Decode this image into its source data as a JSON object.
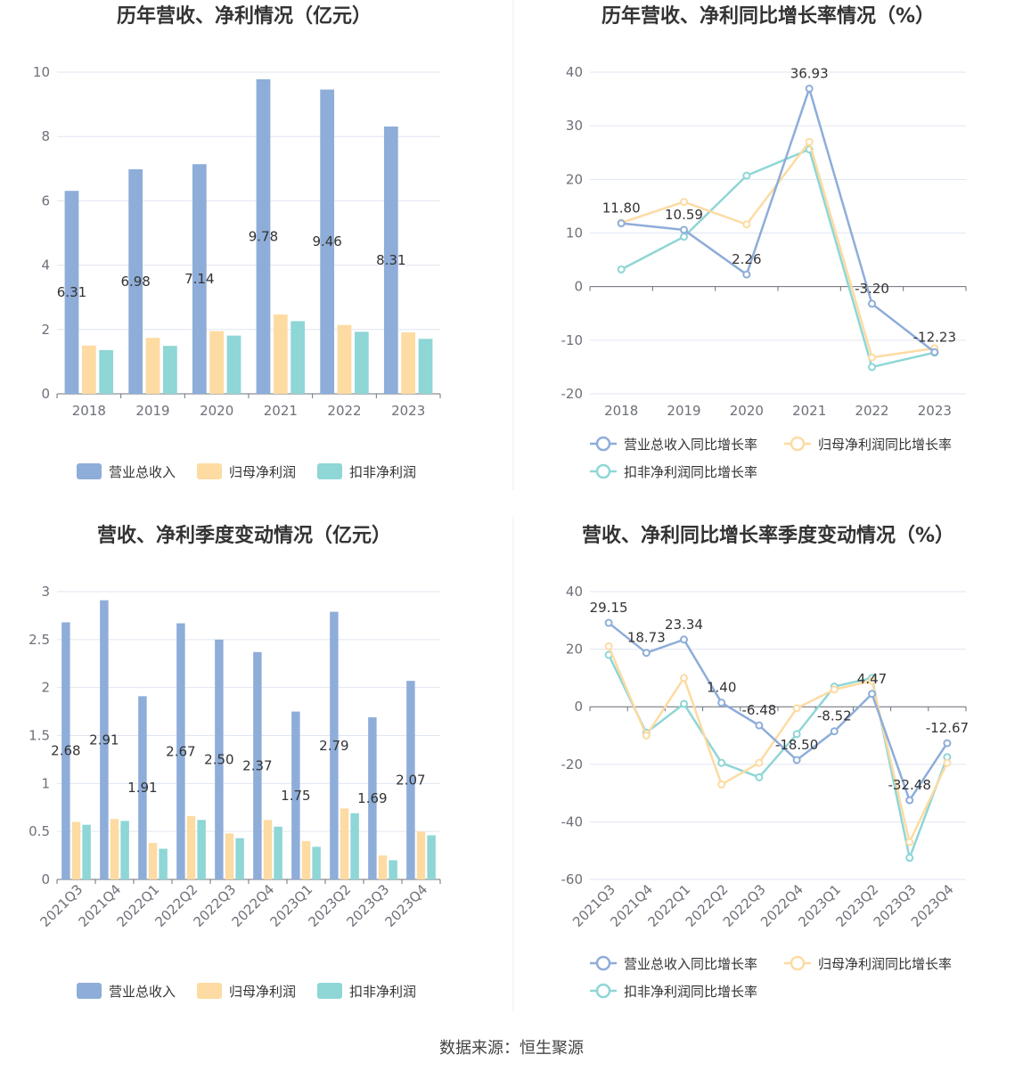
{
  "source": "数据来源：恒生聚源",
  "colors": {
    "revenue": "#8eadd9",
    "net_profit": "#fddba2",
    "deducted_profit": "#8fd6d6",
    "axis": "#6e7079",
    "grid": "#e0e6f1",
    "label": "#333333"
  },
  "chart_data": [
    {
      "id": "annual-values",
      "type": "bar",
      "title": "历年营收、净利情况（亿元）",
      "categories": [
        "2018",
        "2019",
        "2020",
        "2021",
        "2022",
        "2023"
      ],
      "ylim": [
        0,
        10
      ],
      "yticks": [
        0,
        2,
        4,
        6,
        8,
        10
      ],
      "grid": true,
      "legend_position": "bottom",
      "series": [
        {
          "name": "营业总收入",
          "values": [
            6.31,
            6.98,
            7.14,
            9.78,
            9.46,
            8.31
          ],
          "labels": [
            "6.31",
            "6.98",
            "7.14",
            "9.78",
            "9.46",
            "8.31"
          ]
        },
        {
          "name": "归母净利润",
          "values": [
            1.5,
            1.74,
            1.95,
            2.47,
            2.14,
            1.91
          ]
        },
        {
          "name": "扣非净利润",
          "values": [
            1.36,
            1.49,
            1.81,
            2.26,
            1.93,
            1.71
          ]
        }
      ]
    },
    {
      "id": "annual-growth",
      "type": "line",
      "title": "历年营收、净利同比增长率情况（%）",
      "categories": [
        "2018",
        "2019",
        "2020",
        "2021",
        "2022",
        "2023"
      ],
      "ylim": [
        -20,
        40
      ],
      "yticks": [
        -20,
        -10,
        0,
        10,
        20,
        30,
        40
      ],
      "grid": true,
      "legend_position": "bottom",
      "series": [
        {
          "name": "营业总收入同比增长率",
          "values": [
            11.8,
            10.59,
            2.26,
            36.93,
            -3.2,
            -12.23
          ],
          "labels": [
            "11.80",
            "10.59",
            "2.26",
            "36.93",
            "-3.20",
            "-12.23"
          ]
        },
        {
          "name": "归母净利润同比增长率",
          "values": [
            11.9,
            15.8,
            11.6,
            27.0,
            -13.2,
            -11.5
          ]
        },
        {
          "name": "扣非净利润同比增长率",
          "values": [
            3.2,
            9.3,
            20.7,
            25.6,
            -15.0,
            -12.3
          ]
        }
      ]
    },
    {
      "id": "quarterly-values",
      "type": "bar",
      "title": "营收、净利季度变动情况（亿元）",
      "categories": [
        "2021Q3",
        "2021Q4",
        "2022Q1",
        "2022Q2",
        "2022Q3",
        "2022Q4",
        "2023Q1",
        "2023Q2",
        "2023Q3",
        "2023Q4"
      ],
      "ylim": [
        0,
        3
      ],
      "yticks": [
        0,
        0.5,
        1,
        1.5,
        2,
        2.5,
        3
      ],
      "grid": true,
      "legend_position": "bottom",
      "series": [
        {
          "name": "营业总收入",
          "values": [
            2.68,
            2.91,
            1.91,
            2.67,
            2.5,
            2.37,
            1.75,
            2.79,
            1.69,
            2.07
          ],
          "labels": [
            "2.68",
            "2.91",
            "1.91",
            "2.67",
            "2.50",
            "2.37",
            "1.75",
            "2.79",
            "1.69",
            "2.07"
          ]
        },
        {
          "name": "归母净利润",
          "values": [
            0.6,
            0.63,
            0.38,
            0.66,
            0.48,
            0.62,
            0.4,
            0.74,
            0.25,
            0.5
          ]
        },
        {
          "name": "扣非净利润",
          "values": [
            0.57,
            0.61,
            0.32,
            0.62,
            0.43,
            0.55,
            0.34,
            0.69,
            0.2,
            0.46
          ]
        }
      ]
    },
    {
      "id": "quarterly-growth",
      "type": "line",
      "title": "营收、净利同比增长率季度变动情况（%）",
      "categories": [
        "2021Q3",
        "2021Q4",
        "2022Q1",
        "2022Q2",
        "2022Q3",
        "2022Q4",
        "2023Q1",
        "2023Q2",
        "2023Q3",
        "2023Q4"
      ],
      "ylim": [
        -60,
        40
      ],
      "yticks": [
        -60,
        -40,
        -20,
        0,
        20,
        40
      ],
      "grid": true,
      "legend_position": "bottom",
      "series": [
        {
          "name": "营业总收入同比增长率",
          "values": [
            29.15,
            18.73,
            23.34,
            1.4,
            -6.48,
            -18.5,
            -8.52,
            4.47,
            -32.48,
            -12.67
          ],
          "labels": [
            "29.15",
            "18.73",
            "23.34",
            "1.40",
            "-6.48",
            "-18.50",
            "-8.52",
            "4.47",
            "-32.48",
            "-12.67"
          ]
        },
        {
          "name": "归母净利润同比增长率",
          "values": [
            21.0,
            -10.0,
            10.0,
            -27.0,
            -19.5,
            -0.5,
            6.0,
            9.0,
            -47.0,
            -19.5
          ]
        },
        {
          "name": "扣非净利润同比增长率",
          "values": [
            18.0,
            -9.0,
            1.0,
            -19.5,
            -24.5,
            -9.5,
            7.0,
            10.0,
            -52.5,
            -17.5
          ]
        }
      ]
    }
  ]
}
